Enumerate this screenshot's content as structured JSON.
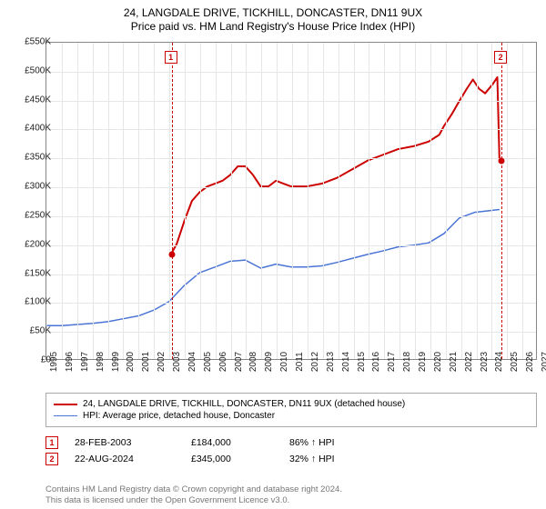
{
  "title": "24, LANGDALE DRIVE, TICKHILL, DONCASTER, DN11 9UX",
  "subtitle": "Price paid vs. HM Land Registry's House Price Index (HPI)",
  "chart": {
    "type": "line",
    "xlim": [
      1995,
      2027
    ],
    "ylim": [
      0,
      550000
    ],
    "ytick_step": 50000,
    "xtick_step": 1,
    "background_color": "#ffffff",
    "grid_color": "#e6e6e6",
    "axis_color": "#888888",
    "title_fontsize": 12,
    "label_fontsize": 10,
    "currency_prefix": "£",
    "y_suffix": "K",
    "series": [
      {
        "name": "24, LANGDALE DRIVE, TICKHILL, DONCASTER, DN11 9UX (detached house)",
        "color": "#cc0000",
        "line_width": 2,
        "points": [
          [
            2003.16,
            184000
          ],
          [
            2003.5,
            200000
          ],
          [
            2004.0,
            240000
          ],
          [
            2004.5,
            275000
          ],
          [
            2005.0,
            290000
          ],
          [
            2005.5,
            300000
          ],
          [
            2006.0,
            305000
          ],
          [
            2006.5,
            310000
          ],
          [
            2007.0,
            320000
          ],
          [
            2007.5,
            335000
          ],
          [
            2008.0,
            335000
          ],
          [
            2008.5,
            320000
          ],
          [
            2009.0,
            300000
          ],
          [
            2009.5,
            300000
          ],
          [
            2010.0,
            310000
          ],
          [
            2010.5,
            305000
          ],
          [
            2011.0,
            300000
          ],
          [
            2012.0,
            300000
          ],
          [
            2013.0,
            305000
          ],
          [
            2014.0,
            315000
          ],
          [
            2015.0,
            330000
          ],
          [
            2016.0,
            345000
          ],
          [
            2017.0,
            355000
          ],
          [
            2018.0,
            365000
          ],
          [
            2019.0,
            370000
          ],
          [
            2020.0,
            378000
          ],
          [
            2020.7,
            390000
          ],
          [
            2021.0,
            405000
          ],
          [
            2021.5,
            425000
          ],
          [
            2022.0,
            448000
          ],
          [
            2022.5,
            470000
          ],
          [
            2022.9,
            486000
          ],
          [
            2023.3,
            470000
          ],
          [
            2023.7,
            462000
          ],
          [
            2024.2,
            478000
          ],
          [
            2024.5,
            490000
          ],
          [
            2024.64,
            345000
          ]
        ]
      },
      {
        "name": "HPI: Average price, detached house, Doncaster",
        "color": "#4a74d6",
        "line_width": 1.5,
        "points": [
          [
            1995.0,
            58000
          ],
          [
            1996.0,
            58000
          ],
          [
            1997.0,
            60000
          ],
          [
            1998.0,
            62000
          ],
          [
            1999.0,
            65000
          ],
          [
            2000.0,
            70000
          ],
          [
            2001.0,
            75000
          ],
          [
            2002.0,
            85000
          ],
          [
            2003.0,
            100000
          ],
          [
            2004.0,
            128000
          ],
          [
            2005.0,
            150000
          ],
          [
            2006.0,
            160000
          ],
          [
            2007.0,
            170000
          ],
          [
            2008.0,
            172000
          ],
          [
            2009.0,
            158000
          ],
          [
            2010.0,
            165000
          ],
          [
            2011.0,
            160000
          ],
          [
            2012.0,
            160000
          ],
          [
            2013.0,
            162000
          ],
          [
            2014.0,
            168000
          ],
          [
            2015.0,
            175000
          ],
          [
            2016.0,
            182000
          ],
          [
            2017.0,
            188000
          ],
          [
            2018.0,
            195000
          ],
          [
            2019.0,
            198000
          ],
          [
            2020.0,
            202000
          ],
          [
            2021.0,
            218000
          ],
          [
            2022.0,
            245000
          ],
          [
            2023.0,
            255000
          ],
          [
            2024.0,
            258000
          ],
          [
            2024.64,
            260000
          ]
        ]
      }
    ],
    "markers": [
      {
        "n": "1",
        "x": 2003.16,
        "y": 184000,
        "color": "#cc0000",
        "box_top": 56
      },
      {
        "n": "2",
        "x": 2024.64,
        "y": 345000,
        "color": "#cc0000",
        "box_top": 56
      }
    ]
  },
  "legend": {
    "border_color": "#aaaaaa",
    "items": [
      {
        "color": "#cc0000",
        "width": 2,
        "label": "24, LANGDALE DRIVE, TICKHILL, DONCASTER, DN11 9UX (detached house)"
      },
      {
        "color": "#4a74d6",
        "width": 1.5,
        "label": "HPI: Average price, detached house, Doncaster"
      }
    ]
  },
  "sales": [
    {
      "n": "1",
      "color": "#cc0000",
      "date": "28-FEB-2003",
      "price": "£184,000",
      "hpi": "86% ↑ HPI"
    },
    {
      "n": "2",
      "color": "#cc0000",
      "date": "22-AUG-2024",
      "price": "£345,000",
      "hpi": "32% ↑ HPI"
    }
  ],
  "footnote": {
    "line1": "Contains HM Land Registry data © Crown copyright and database right 2024.",
    "line2": "This data is licensed under the Open Government Licence v3.0.",
    "color": "#777777"
  }
}
